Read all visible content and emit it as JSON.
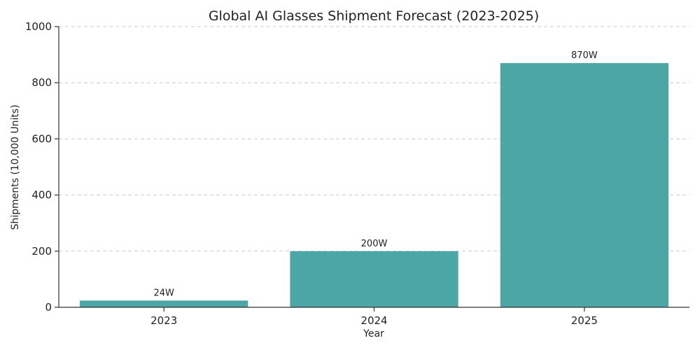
{
  "chart_data": {
    "type": "bar",
    "title": "Global AI Glasses Shipment Forecast (2023-2025)",
    "xlabel": "Year",
    "ylabel": "Shipments (10,000 Units)",
    "categories": [
      "2023",
      "2024",
      "2025"
    ],
    "values": [
      24,
      200,
      870
    ],
    "data_labels": [
      "24W",
      "200W",
      "870W"
    ],
    "ylim": [
      0,
      1000
    ],
    "yticks": [
      0,
      200,
      400,
      600,
      800,
      1000
    ],
    "ytick_labels": [
      "0",
      "200",
      "400",
      "600",
      "800",
      "1000"
    ],
    "grid": true,
    "legend": "none",
    "bar_color": "#4da6a6"
  }
}
